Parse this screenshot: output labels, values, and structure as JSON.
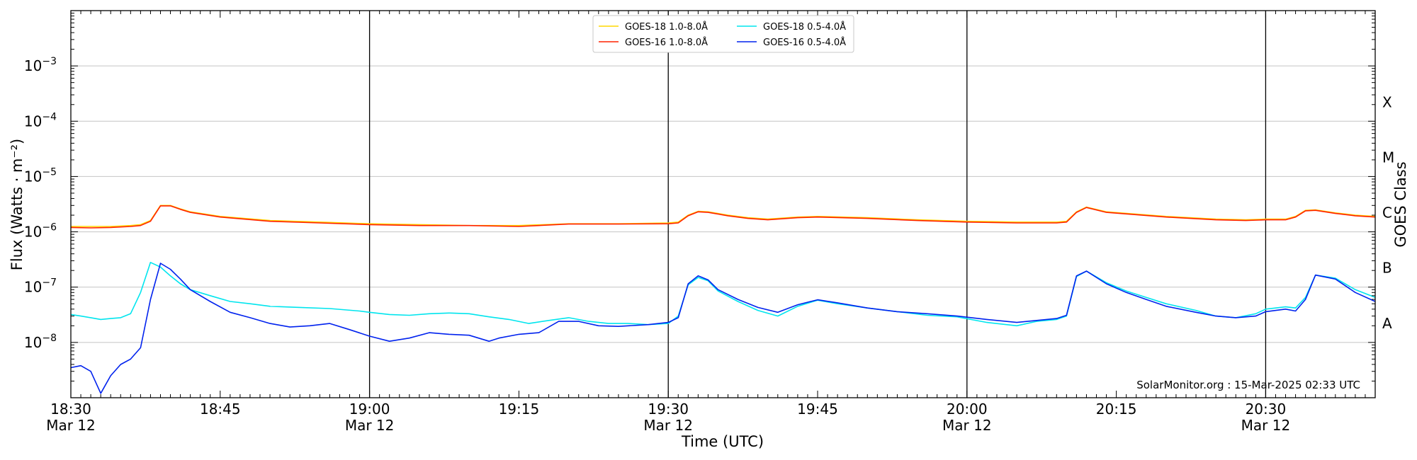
{
  "chart_data": {
    "type": "line",
    "xlabel": "Time (UTC)",
    "ylabel": "Flux (Watts · m⁻²)",
    "y2label": "GOES Class",
    "yscale": "log",
    "ylim": [
      1e-09,
      0.01
    ],
    "xlim": [
      "2025-03-12 18:30",
      "2025-03-12 20:41"
    ],
    "grid": "horizontal at decades",
    "legend_position": "top-center",
    "credit": "SolarMonitor.org : 15-Mar-2025 02:33 UTC",
    "x_ticks": [
      {
        "time": "18:30",
        "label": "18:30",
        "sublabel": "Mar 12"
      },
      {
        "time": "18:45",
        "label": "18:45",
        "sublabel": ""
      },
      {
        "time": "19:00",
        "label": "19:00",
        "sublabel": "Mar 12"
      },
      {
        "time": "19:15",
        "label": "19:15",
        "sublabel": ""
      },
      {
        "time": "19:30",
        "label": "19:30",
        "sublabel": "Mar 12"
      },
      {
        "time": "19:45",
        "label": "19:45",
        "sublabel": ""
      },
      {
        "time": "20:00",
        "label": "20:00",
        "sublabel": "Mar 12"
      },
      {
        "time": "20:15",
        "label": "20:15",
        "sublabel": ""
      },
      {
        "time": "20:30",
        "label": "20:30",
        "sublabel": "Mar 12"
      }
    ],
    "vlines": [
      "19:00",
      "19:30",
      "20:00",
      "20:30"
    ],
    "y_ticks": [
      {
        "exp": -8,
        "base": "10",
        "sup": "−8"
      },
      {
        "exp": -7,
        "base": "10",
        "sup": "−7"
      },
      {
        "exp": -6,
        "base": "10",
        "sup": "−6"
      },
      {
        "exp": -5,
        "base": "10",
        "sup": "−5"
      },
      {
        "exp": -4,
        "base": "10",
        "sup": "−4"
      },
      {
        "exp": -3,
        "base": "10",
        "sup": "−3"
      }
    ],
    "goes_classes": [
      {
        "label": "A",
        "exp": -8
      },
      {
        "label": "B",
        "exp": -7
      },
      {
        "label": "C",
        "exp": -6
      },
      {
        "label": "M",
        "exp": -5
      },
      {
        "label": "X",
        "exp": -4
      }
    ],
    "series": [
      {
        "name": "GOES-18 1.0-8.0Å",
        "color": "#ffd700",
        "x": [
          "18:30",
          "18:32",
          "18:34",
          "18:36",
          "18:37",
          "18:38",
          "18:39",
          "18:40",
          "18:41",
          "18:42",
          "18:45",
          "18:50",
          "18:55",
          "19:00",
          "19:05",
          "19:10",
          "19:15",
          "19:20",
          "19:25",
          "19:30",
          "19:31",
          "19:32",
          "19:33",
          "19:34",
          "19:36",
          "19:38",
          "19:40",
          "19:43",
          "19:45",
          "19:50",
          "19:55",
          "20:00",
          "20:05",
          "20:09",
          "20:10",
          "20:11",
          "20:12",
          "20:14",
          "20:20",
          "20:25",
          "20:28",
          "20:30",
          "20:32",
          "20:33",
          "20:34",
          "20:35",
          "20:37",
          "20:39",
          "20:41"
        ],
        "y": [
          1.25e-06,
          1.25e-06,
          1.25e-06,
          1.3e-06,
          1.35e-06,
          1.6e-06,
          3e-06,
          3e-06,
          2.6e-06,
          2.3e-06,
          1.9e-06,
          1.6e-06,
          1.5e-06,
          1.4e-06,
          1.35e-06,
          1.3e-06,
          1.3e-06,
          1.4e-06,
          1.4e-06,
          1.45e-06,
          1.5e-06,
          2e-06,
          2.35e-06,
          2.3e-06,
          2e-06,
          1.8e-06,
          1.7e-06,
          1.85e-06,
          1.9e-06,
          1.8e-06,
          1.65e-06,
          1.55e-06,
          1.5e-06,
          1.5e-06,
          1.55e-06,
          2.3e-06,
          2.8e-06,
          2.3e-06,
          1.9e-06,
          1.7e-06,
          1.65e-06,
          1.7e-06,
          1.7e-06,
          1.9e-06,
          2.45e-06,
          2.5e-06,
          2.2e-06,
          2e-06,
          1.9e-06
        ]
      },
      {
        "name": "GOES-16 1.0-8.0Å",
        "color": "#ff2200",
        "x": [
          "18:30",
          "18:32",
          "18:34",
          "18:36",
          "18:37",
          "18:38",
          "18:39",
          "18:40",
          "18:41",
          "18:42",
          "18:45",
          "18:50",
          "18:55",
          "19:00",
          "19:05",
          "19:10",
          "19:15",
          "19:20",
          "19:25",
          "19:30",
          "19:31",
          "19:32",
          "19:33",
          "19:34",
          "19:36",
          "19:38",
          "19:40",
          "19:43",
          "19:45",
          "19:50",
          "19:55",
          "20:00",
          "20:05",
          "20:09",
          "20:10",
          "20:11",
          "20:12",
          "20:14",
          "20:20",
          "20:25",
          "20:28",
          "20:30",
          "20:32",
          "20:33",
          "20:34",
          "20:35",
          "20:37",
          "20:39",
          "20:41"
        ],
        "y": [
          1.2e-06,
          1.18e-06,
          1.2e-06,
          1.25e-06,
          1.3e-06,
          1.55e-06,
          2.95e-06,
          2.95e-06,
          2.55e-06,
          2.25e-06,
          1.85e-06,
          1.55e-06,
          1.45e-06,
          1.35e-06,
          1.3e-06,
          1.3e-06,
          1.25e-06,
          1.38e-06,
          1.38e-06,
          1.4e-06,
          1.45e-06,
          1.95e-06,
          2.3e-06,
          2.25e-06,
          1.95e-06,
          1.75e-06,
          1.65e-06,
          1.8e-06,
          1.85e-06,
          1.75e-06,
          1.6e-06,
          1.5e-06,
          1.45e-06,
          1.45e-06,
          1.5e-06,
          2.25e-06,
          2.75e-06,
          2.25e-06,
          1.85e-06,
          1.65e-06,
          1.6e-06,
          1.65e-06,
          1.65e-06,
          1.85e-06,
          2.4e-06,
          2.45e-06,
          2.15e-06,
          1.95e-06,
          1.85e-06
        ]
      },
      {
        "name": "GOES-18 0.5-4.0Å",
        "color": "#00e5ee",
        "x": [
          "18:30",
          "18:31",
          "18:32",
          "18:33",
          "18:34",
          "18:35",
          "18:36",
          "18:37",
          "18:38",
          "18:39",
          "18:40",
          "18:41",
          "18:42",
          "18:44",
          "18:46",
          "18:48",
          "18:50",
          "18:53",
          "18:56",
          "18:59",
          "19:00",
          "19:02",
          "19:04",
          "19:06",
          "19:08",
          "19:10",
          "19:12",
          "19:14",
          "19:16",
          "19:18",
          "19:20",
          "19:22",
          "19:24",
          "19:26",
          "19:28",
          "19:30",
          "19:31",
          "19:32",
          "19:33",
          "19:34",
          "19:35",
          "19:37",
          "19:39",
          "19:41",
          "19:43",
          "19:45",
          "19:47",
          "19:50",
          "19:53",
          "19:56",
          "19:59",
          "20:02",
          "20:05",
          "20:07",
          "20:09",
          "20:10",
          "20:11",
          "20:12",
          "20:14",
          "20:16",
          "20:18",
          "20:20",
          "20:23",
          "20:25",
          "20:27",
          "20:29",
          "20:30",
          "20:32",
          "20:33",
          "20:34",
          "20:35",
          "20:37",
          "20:39",
          "20:41"
        ],
        "y": [
          3.2e-08,
          3e-08,
          2.8e-08,
          2.6e-08,
          2.7e-08,
          2.8e-08,
          3.3e-08,
          8e-08,
          2.8e-07,
          2.3e-07,
          1.6e-07,
          1.15e-07,
          9e-08,
          7e-08,
          5.5e-08,
          5e-08,
          4.5e-08,
          4.3e-08,
          4.1e-08,
          3.7e-08,
          3.5e-08,
          3.2e-08,
          3.1e-08,
          3.3e-08,
          3.4e-08,
          3.3e-08,
          2.9e-08,
          2.6e-08,
          2.2e-08,
          2.5e-08,
          2.8e-08,
          2.4e-08,
          2.2e-08,
          2.2e-08,
          2.1e-08,
          2.2e-08,
          3e-08,
          1.1e-07,
          1.5e-07,
          1.3e-07,
          8.5e-08,
          5.5e-08,
          3.8e-08,
          3e-08,
          4.5e-08,
          5.8e-08,
          5e-08,
          4.2e-08,
          3.6e-08,
          3.1e-08,
          2.9e-08,
          2.3e-08,
          2e-08,
          2.4e-08,
          2.6e-08,
          3e-08,
          1.55e-07,
          1.95e-07,
          1.2e-07,
          8.5e-08,
          6.5e-08,
          5e-08,
          3.8e-08,
          3e-08,
          2.8e-08,
          3.3e-08,
          4e-08,
          4.4e-08,
          4.2e-08,
          6.5e-08,
          1.65e-07,
          1.45e-07,
          9e-08,
          6.5e-08
        ]
      },
      {
        "name": "GOES-16 0.5-4.0Å",
        "color": "#0022ee",
        "x": [
          "18:30",
          "18:31",
          "18:32",
          "18:33",
          "18:34",
          "18:35",
          "18:36",
          "18:37",
          "18:38",
          "18:39",
          "18:40",
          "18:41",
          "18:42",
          "18:44",
          "18:46",
          "18:48",
          "18:50",
          "18:52",
          "18:54",
          "18:56",
          "18:58",
          "19:00",
          "19:02",
          "19:04",
          "19:06",
          "19:08",
          "19:10",
          "19:12",
          "19:13",
          "19:15",
          "19:17",
          "19:19",
          "19:21",
          "19:23",
          "19:25",
          "19:28",
          "19:30",
          "19:31",
          "19:32",
          "19:33",
          "19:34",
          "19:35",
          "19:37",
          "19:39",
          "19:41",
          "19:43",
          "19:45",
          "19:47",
          "19:50",
          "19:53",
          "19:56",
          "19:59",
          "20:02",
          "20:05",
          "20:07",
          "20:09",
          "20:10",
          "20:11",
          "20:12",
          "20:14",
          "20:16",
          "20:18",
          "20:20",
          "20:23",
          "20:25",
          "20:27",
          "20:29",
          "20:30",
          "20:32",
          "20:33",
          "20:34",
          "20:35",
          "20:37",
          "20:39",
          "20:41"
        ],
        "y": [
          3.5e-09,
          3.8e-09,
          3e-09,
          1.2e-09,
          2.5e-09,
          4e-09,
          5e-09,
          8e-09,
          6e-08,
          2.7e-07,
          2.1e-07,
          1.4e-07,
          9e-08,
          5.5e-08,
          3.5e-08,
          2.8e-08,
          2.2e-08,
          1.9e-08,
          2e-08,
          2.2e-08,
          1.7e-08,
          1.3e-08,
          1.05e-08,
          1.2e-08,
          1.5e-08,
          1.4e-08,
          1.35e-08,
          1.05e-08,
          1.2e-08,
          1.4e-08,
          1.5e-08,
          2.4e-08,
          2.4e-08,
          2e-08,
          1.95e-08,
          2.1e-08,
          2.3e-08,
          2.8e-08,
          1.15e-07,
          1.6e-07,
          1.35e-07,
          9e-08,
          6e-08,
          4.3e-08,
          3.5e-08,
          4.8e-08,
          5.9e-08,
          5.2e-08,
          4.2e-08,
          3.6e-08,
          3.3e-08,
          3e-08,
          2.6e-08,
          2.3e-08,
          2.5e-08,
          2.7e-08,
          3.1e-08,
          1.6e-07,
          1.95e-07,
          1.15e-07,
          8e-08,
          6e-08,
          4.5e-08,
          3.5e-08,
          3e-08,
          2.8e-08,
          3e-08,
          3.6e-08,
          4e-08,
          3.7e-08,
          6e-08,
          1.65e-07,
          1.4e-07,
          8e-08,
          5.5e-08
        ]
      }
    ]
  }
}
